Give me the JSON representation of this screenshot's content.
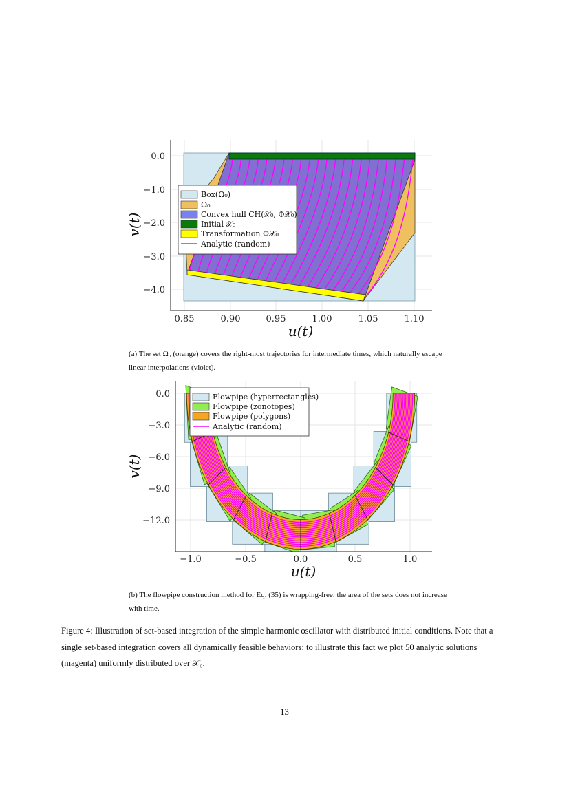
{
  "figure_a": {
    "x_ticks": [
      "0.85",
      "0.90",
      "0.95",
      "1.00",
      "1.05",
      "1.10"
    ],
    "y_ticks": [
      "0.0",
      "−1.0",
      "−2.0",
      "−3.0",
      "−4.0"
    ],
    "xlabel": "u(t)",
    "ylabel": "v(t)",
    "legend": [
      "Box(Ω₀)",
      "Ω₀",
      "Convex hull CH(𝒳₀, Φ𝒳₀)",
      "Initial 𝒳₀",
      "Transformation Φ𝒳₀",
      "Analytic (random)"
    ],
    "caption": "(a) The set Ω₀ (orange) covers the right-most trajectories for intermediate times, which naturally escape linear interpolations (violet)."
  },
  "figure_b": {
    "x_ticks": [
      "−1.0",
      "−0.5",
      "0.0",
      "0.5",
      "1.0"
    ],
    "y_ticks": [
      "0.0",
      "−3.0",
      "−6.0",
      "−9.0",
      "−12.0"
    ],
    "xlabel": "u(t)",
    "ylabel": "v(t)",
    "legend": [
      "Flowpipe (hyperrectangles)",
      "Flowpipe (zonotopes)",
      "Flowpipe (polygons)",
      "Analytic (random)"
    ],
    "caption": "(b) The flowpipe construction method for Eq. (35) is wrapping-free: the area of the sets does not increase with time."
  },
  "colors": {
    "box": "#d3e8f0",
    "omega": "#f0c060",
    "hull": "#7a6ad8",
    "initial": "#0a7a0a",
    "transform": "#ffff00",
    "analytic": "#ff00ff",
    "zonotope": "#90ee50",
    "polygon": "#f5a623"
  },
  "main_caption": "Figure 4: Illustration of set-based integration of the simple harmonic oscillator with distributed initial conditions. Note that a single set-based integration covers all dynamically feasible behaviors: to illustrate this fact we plot 50 analytic solutions (magenta) uniformly distributed over 𝒳₀.",
  "page_number": "13"
}
